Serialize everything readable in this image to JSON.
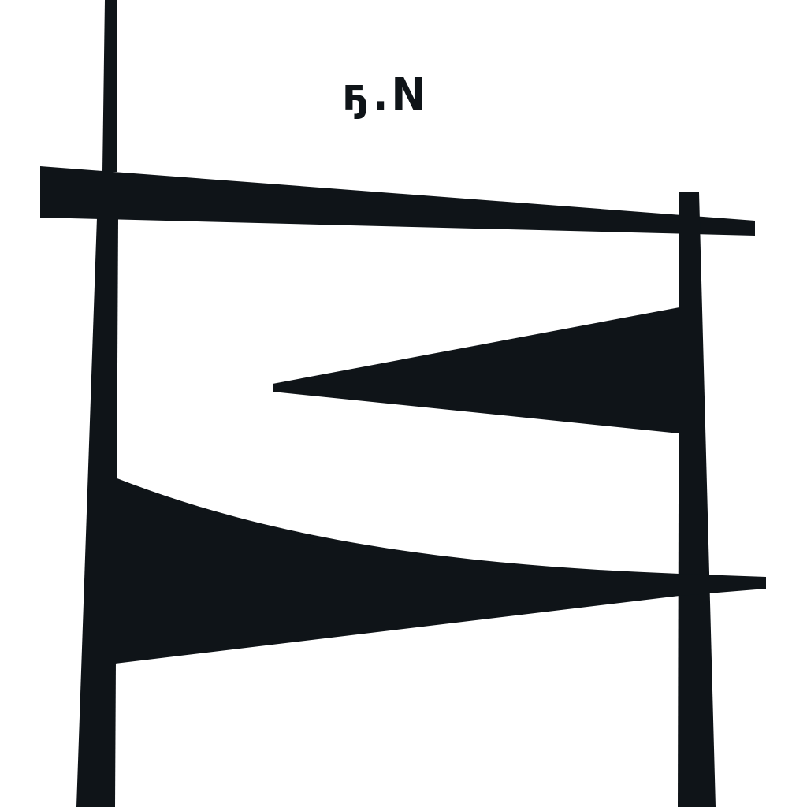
{
  "caption": {
    "text": "ҕ.N"
  },
  "colors": {
    "ink": "#0f1418",
    "background": "#ffffff"
  }
}
